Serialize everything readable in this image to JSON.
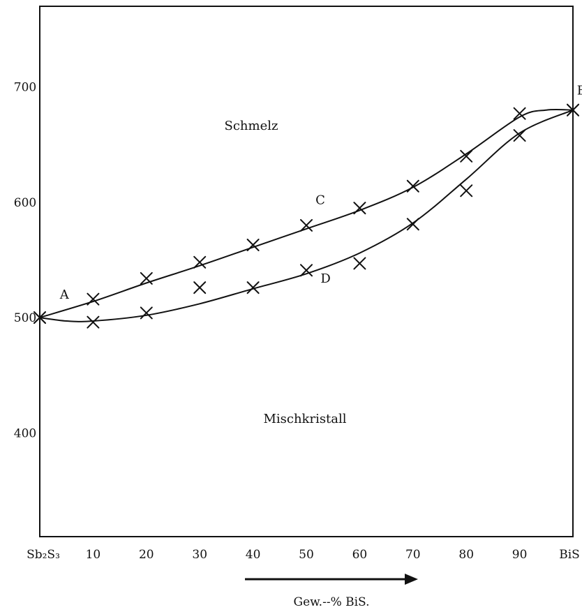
{
  "chart_data": {
    "type": "line",
    "x_axis": {
      "start_label": "Sb₂S₃",
      "end_label": "BiS",
      "tick_labels": [
        "10",
        "20",
        "30",
        "40",
        "50",
        "60",
        "70",
        "80",
        "90"
      ],
      "ticks": [
        10,
        20,
        30,
        40,
        50,
        60,
        70,
        80,
        90
      ],
      "range": [
        0,
        100
      ],
      "label": "Gew.--% BiS."
    },
    "y_axis": {
      "tick_labels": [
        "400",
        "500",
        "600",
        "700"
      ],
      "ticks": [
        400,
        500,
        600,
        700
      ],
      "range": [
        310,
        770
      ]
    },
    "regions": {
      "upper": "Schmelz",
      "lower": "Mischkristall"
    },
    "point_labels": [
      {
        "text": "A",
        "x": 2,
        "y": 520
      },
      {
        "text": "B",
        "x": 99,
        "y": 697
      },
      {
        "text": "C",
        "x": 50,
        "y": 602
      },
      {
        "text": "D",
        "x": 51,
        "y": 534
      }
    ],
    "series": [
      {
        "name": "upper",
        "points": [
          [
            0,
            500
          ],
          [
            10,
            516
          ],
          [
            20,
            534
          ],
          [
            30,
            548
          ],
          [
            40,
            563
          ],
          [
            50,
            580
          ],
          [
            60,
            595
          ],
          [
            70,
            614
          ],
          [
            80,
            640
          ],
          [
            90,
            677
          ],
          [
            100,
            680
          ]
        ]
      },
      {
        "name": "lower",
        "points": [
          [
            0,
            500
          ],
          [
            10,
            496
          ],
          [
            20,
            504
          ],
          [
            30,
            526
          ],
          [
            40,
            526
          ],
          [
            50,
            541
          ],
          [
            60,
            547
          ],
          [
            70,
            581
          ],
          [
            80,
            610
          ],
          [
            90,
            658
          ],
          [
            100,
            680
          ]
        ]
      }
    ],
    "upper_curve": [
      [
        0,
        500
      ],
      [
        10,
        514
      ],
      [
        20,
        530
      ],
      [
        30,
        545
      ],
      [
        40,
        561
      ],
      [
        50,
        577
      ],
      [
        60,
        593
      ],
      [
        70,
        613
      ],
      [
        80,
        642
      ],
      [
        90,
        674
      ],
      [
        95,
        680
      ],
      [
        100,
        680
      ]
    ],
    "lower_curve": [
      [
        0,
        500
      ],
      [
        5,
        497
      ],
      [
        10,
        497
      ],
      [
        20,
        502
      ],
      [
        30,
        512
      ],
      [
        40,
        525
      ],
      [
        50,
        538
      ],
      [
        60,
        556
      ],
      [
        70,
        582
      ],
      [
        80,
        620
      ],
      [
        90,
        660
      ],
      [
        100,
        680
      ]
    ]
  }
}
